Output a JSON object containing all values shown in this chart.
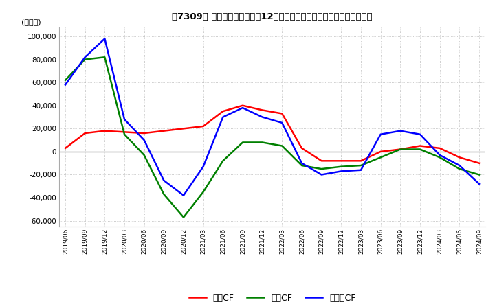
{
  "title": "　7309、 キャッシュフローの12か月移動合計の対前年同期増減額の推移",
  "title_bracket": "　7309、",
  "ylabel": "(百万円)",
  "ylim": [
    -65000,
    108000
  ],
  "yticks": [
    -60000,
    -40000,
    -20000,
    0,
    20000,
    40000,
    60000,
    80000,
    100000
  ],
  "background_color": "#ffffff",
  "grid_color": "#bbbbbb",
  "dates": [
    "2019/06",
    "2019/09",
    "2019/12",
    "2020/03",
    "2020/06",
    "2020/09",
    "2020/12",
    "2021/03",
    "2021/06",
    "2021/09",
    "2021/12",
    "2022/03",
    "2022/06",
    "2022/09",
    "2022/12",
    "2023/03",
    "2023/06",
    "2023/09",
    "2023/12",
    "2024/03",
    "2024/06",
    "2024/09"
  ],
  "operating_cf": [
    3000,
    16000,
    18000,
    17000,
    16000,
    18000,
    20000,
    22000,
    35000,
    40000,
    36000,
    33000,
    3000,
    -8000,
    -8000,
    -8000,
    0,
    2000,
    5000,
    3000,
    -5000,
    -10000
  ],
  "investing_cf": [
    62000,
    80000,
    82000,
    15000,
    -3000,
    -37000,
    -57000,
    -35000,
    -8000,
    8000,
    8000,
    5000,
    -12000,
    -15000,
    -13000,
    -12000,
    -5000,
    2000,
    2000,
    -5000,
    -15000,
    -20000
  ],
  "free_cf": [
    58000,
    82000,
    98000,
    28000,
    10000,
    -25000,
    -38000,
    -13000,
    30000,
    38000,
    30000,
    25000,
    -10000,
    -20000,
    -17000,
    -16000,
    15000,
    18000,
    15000,
    -3000,
    -12000,
    -28000
  ],
  "line_colors": {
    "operating_cf": "#ff0000",
    "investing_cf": "#008000",
    "free_cf": "#0000ff"
  },
  "legend_labels": {
    "operating_cf": "営業CF",
    "investing_cf": "投資CF",
    "free_cf": "フリーCF"
  }
}
